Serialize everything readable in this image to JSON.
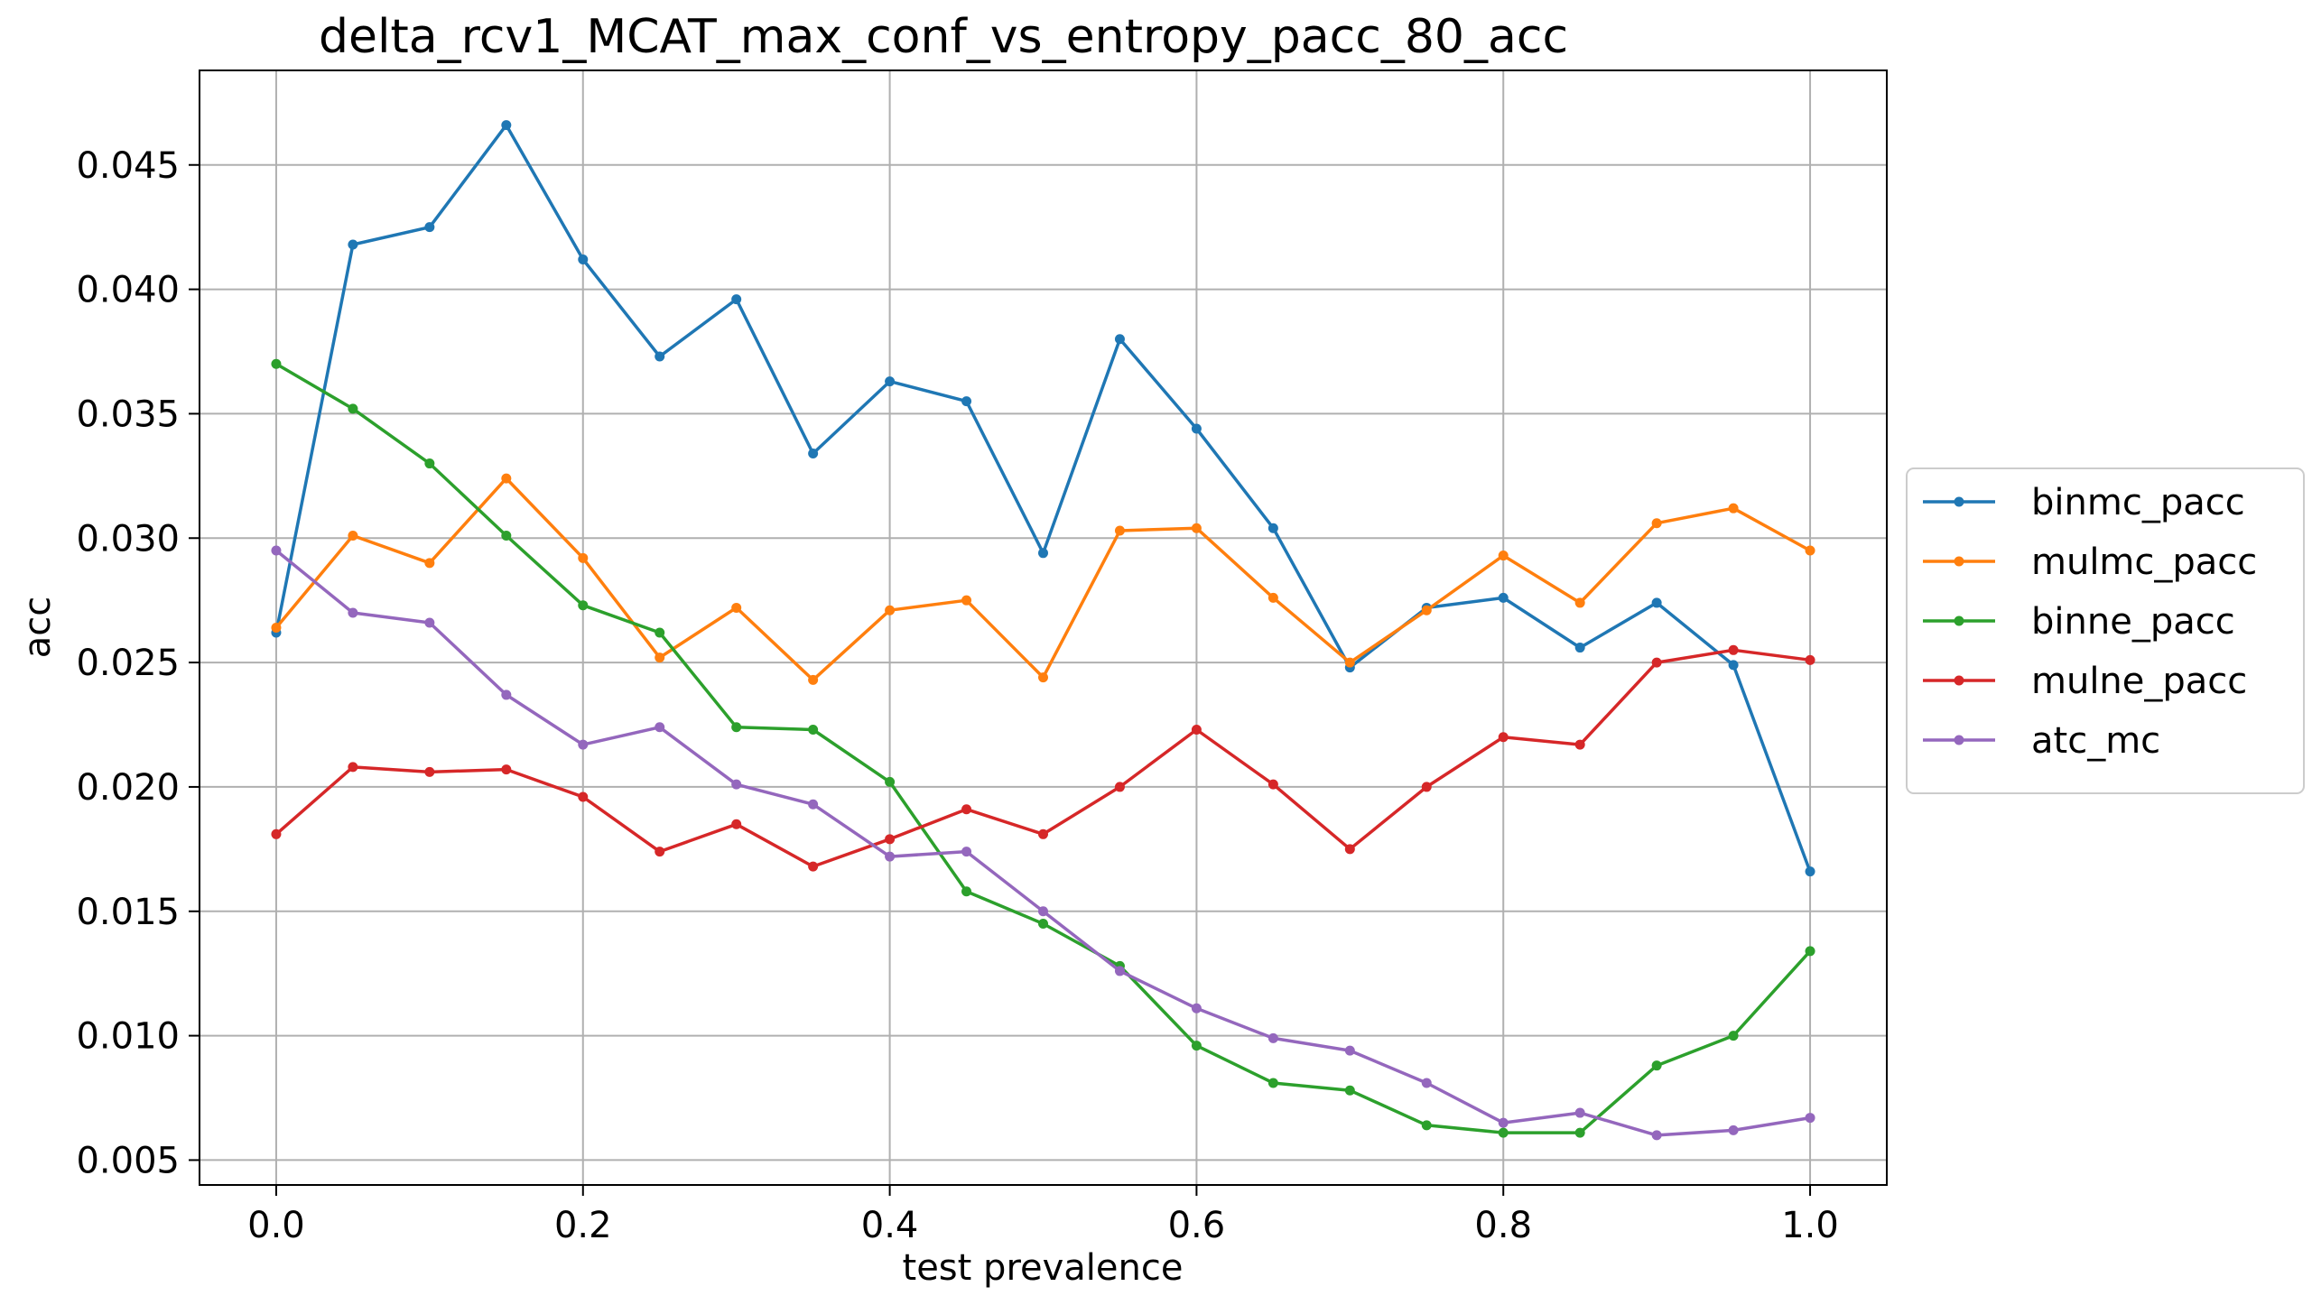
{
  "chart_data": {
    "type": "line",
    "title": "delta_rcv1_MCAT_max_conf_vs_entropy_pacc_80_acc",
    "xlabel": "test prevalence",
    "ylabel": "acc",
    "xlim": [
      -0.05,
      1.05
    ],
    "ylim": [
      0.004,
      0.0488
    ],
    "xticks": [
      0.0,
      0.2,
      0.4,
      0.6,
      0.8,
      1.0
    ],
    "xtick_labels": [
      "0.0",
      "0.2",
      "0.4",
      "0.6",
      "0.8",
      "1.0"
    ],
    "yticks": [
      0.005,
      0.01,
      0.015,
      0.02,
      0.025,
      0.03,
      0.035,
      0.04,
      0.045
    ],
    "ytick_labels": [
      "0.005",
      "0.010",
      "0.015",
      "0.020",
      "0.025",
      "0.030",
      "0.035",
      "0.040",
      "0.045"
    ],
    "grid": true,
    "legend_position": "center-right-outside",
    "x": [
      0.0,
      0.05,
      0.1,
      0.15,
      0.2,
      0.25,
      0.3,
      0.35,
      0.4,
      0.45,
      0.5,
      0.55,
      0.6,
      0.65,
      0.7,
      0.75,
      0.8,
      0.85,
      0.9,
      0.95,
      1.0
    ],
    "series": [
      {
        "name": "binmc_pacc",
        "color": "#1f77b4",
        "values": [
          0.0262,
          0.0418,
          0.0425,
          0.0466,
          0.0412,
          0.0373,
          0.0396,
          0.0334,
          0.0363,
          0.0355,
          0.0294,
          0.038,
          0.0344,
          0.0304,
          0.0248,
          0.0272,
          0.0276,
          0.0256,
          0.0274,
          0.0249,
          0.0166
        ]
      },
      {
        "name": "mulmc_pacc",
        "color": "#ff7f0e",
        "values": [
          0.0264,
          0.0301,
          0.029,
          0.0324,
          0.0292,
          0.0252,
          0.0272,
          0.0243,
          0.0271,
          0.0275,
          0.0244,
          0.0303,
          0.0304,
          0.0276,
          0.025,
          0.0271,
          0.0293,
          0.0274,
          0.0306,
          0.0312,
          0.0295
        ]
      },
      {
        "name": "binne_pacc",
        "color": "#2ca02c",
        "values": [
          0.037,
          0.0352,
          0.033,
          0.0301,
          0.0273,
          0.0262,
          0.0224,
          0.0223,
          0.0202,
          0.0158,
          0.0145,
          0.0128,
          0.0096,
          0.0081,
          0.0078,
          0.0064,
          0.0061,
          0.0061,
          0.0088,
          0.01,
          0.0134
        ]
      },
      {
        "name": "mulne_pacc",
        "color": "#d62728",
        "values": [
          0.0181,
          0.0208,
          0.0206,
          0.0207,
          0.0196,
          0.0174,
          0.0185,
          0.0168,
          0.0179,
          0.0191,
          0.0181,
          0.02,
          0.0223,
          0.0201,
          0.0175,
          0.02,
          0.022,
          0.0217,
          0.025,
          0.0255,
          0.0251
        ]
      },
      {
        "name": "atc_mc",
        "color": "#9467bd",
        "values": [
          0.0295,
          0.027,
          0.0266,
          0.0237,
          0.0217,
          0.0224,
          0.0201,
          0.0193,
          0.0172,
          0.0174,
          0.015,
          0.0126,
          0.0111,
          0.0099,
          0.0094,
          0.0081,
          0.0065,
          0.0069,
          0.006,
          0.0062,
          0.0067
        ]
      }
    ]
  }
}
